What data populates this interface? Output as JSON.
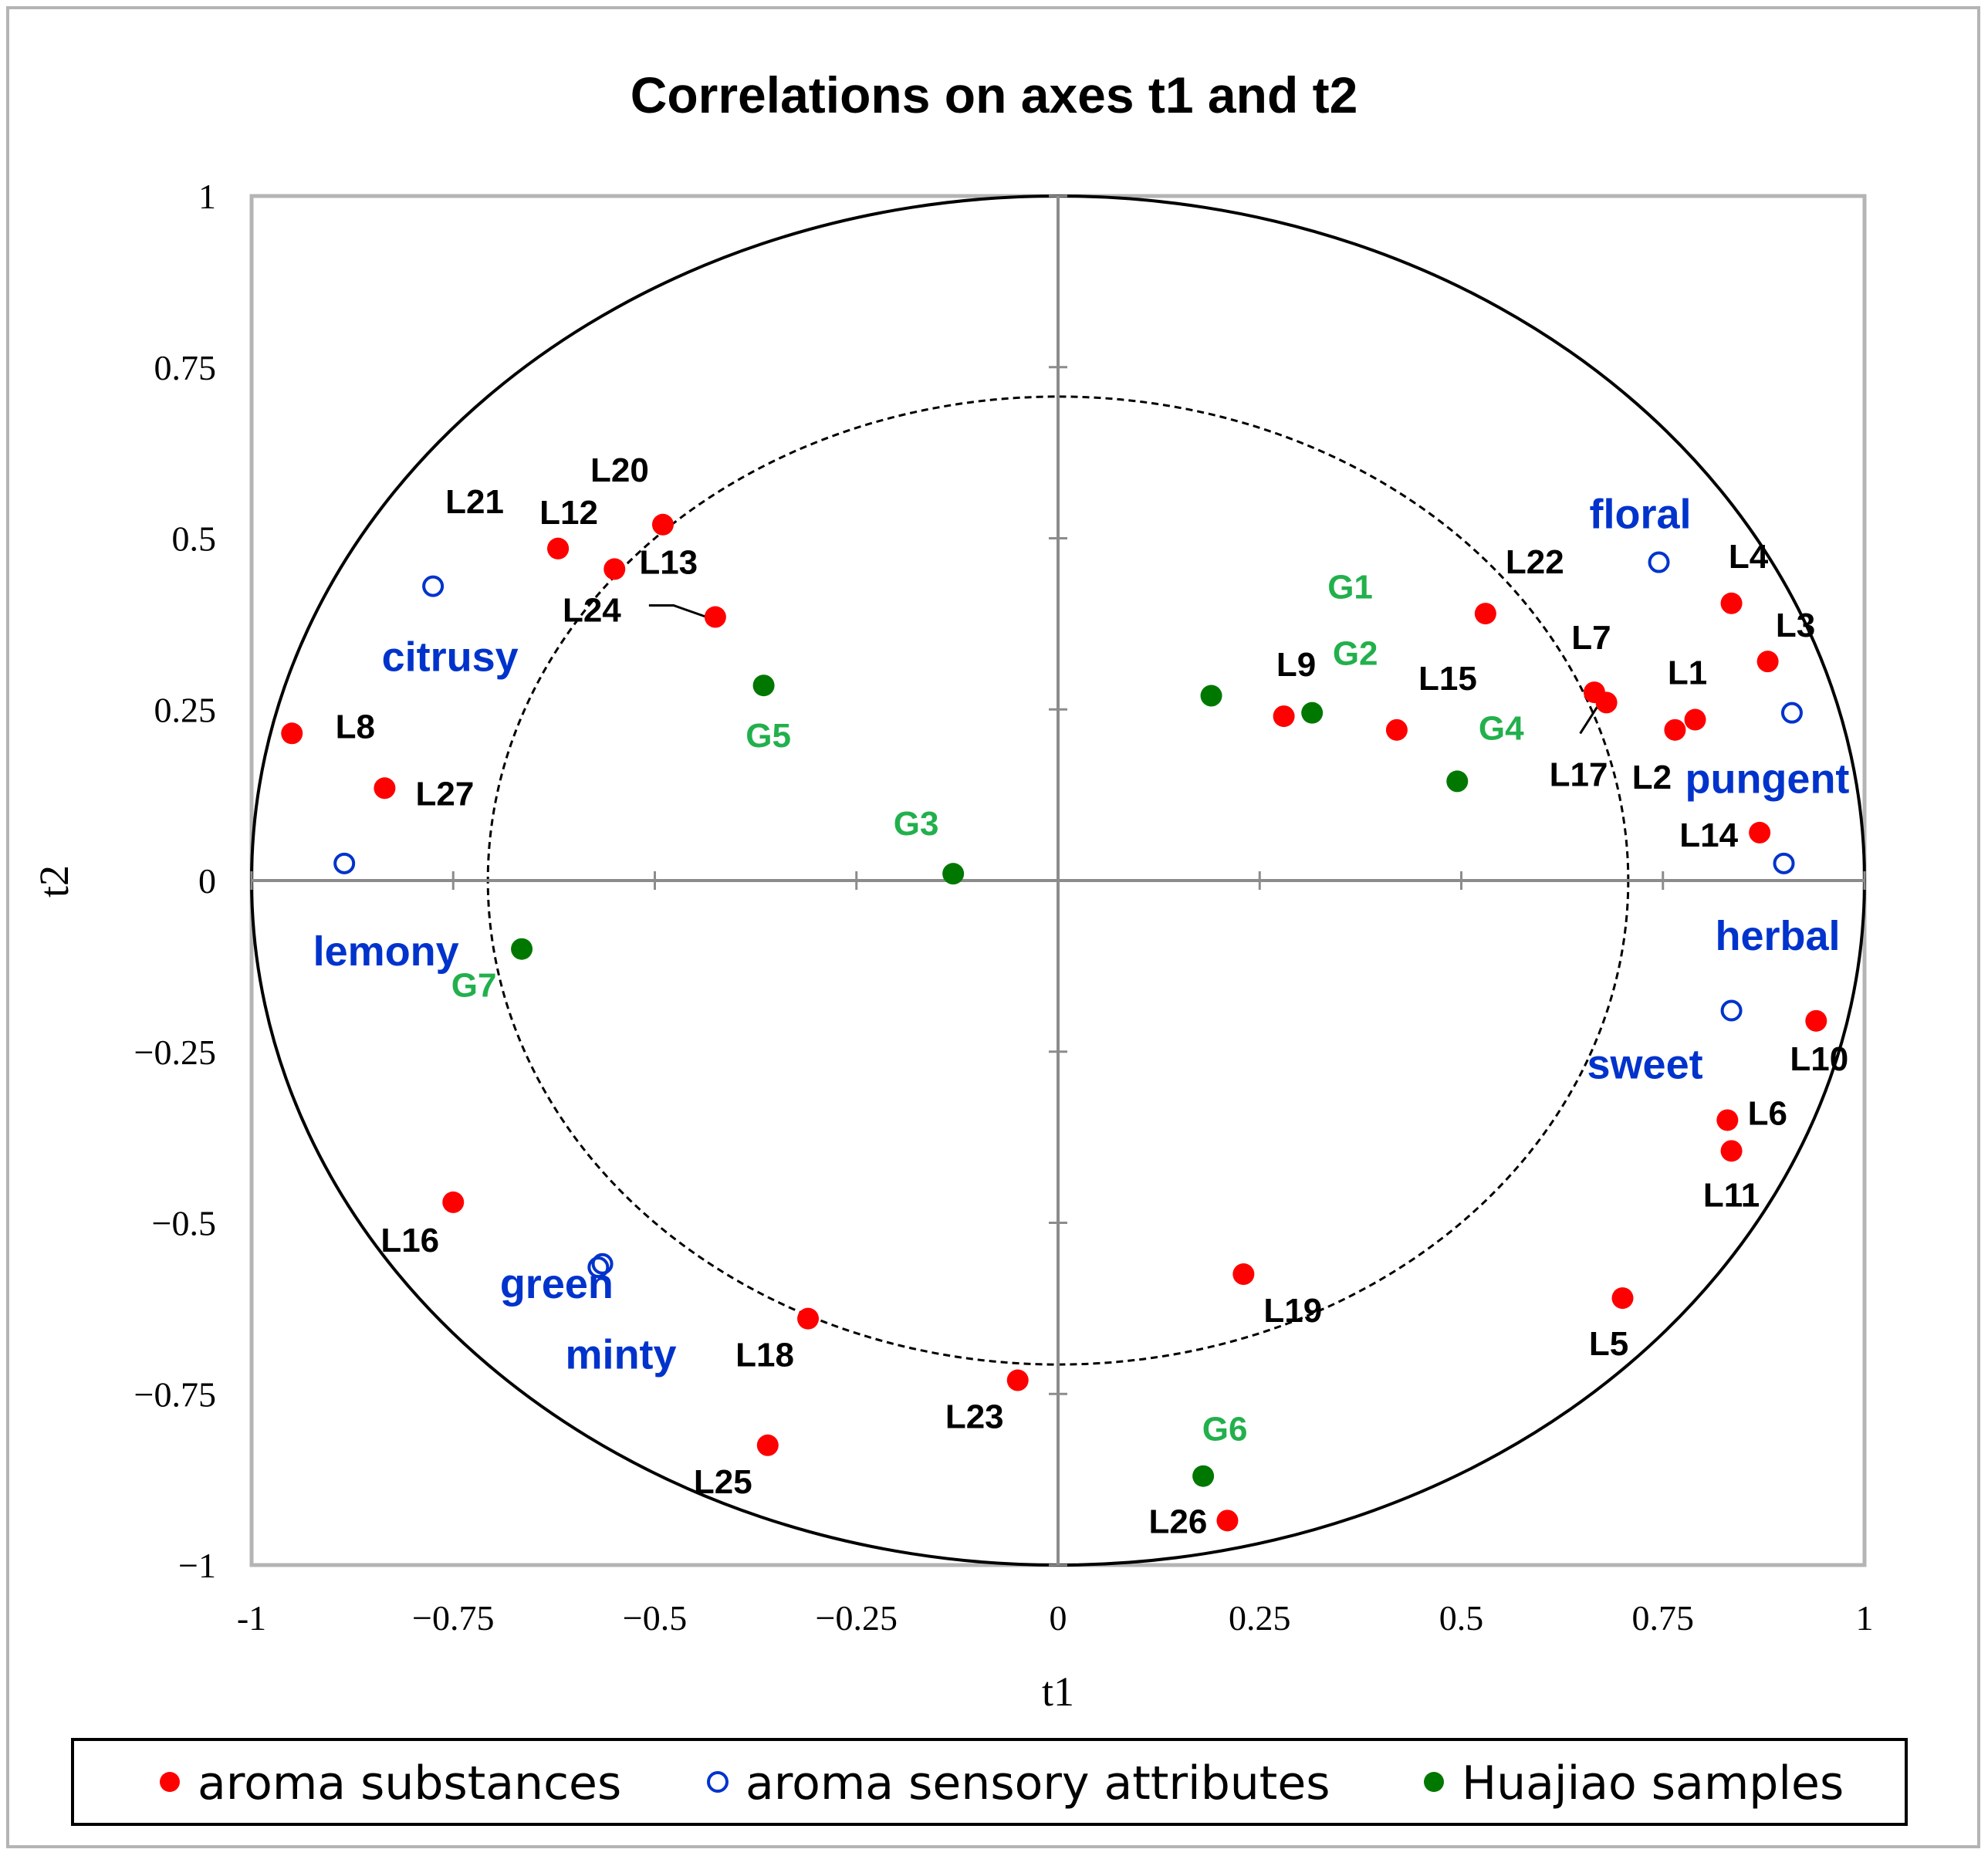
{
  "chart_data": {
    "type": "scatter",
    "title": "Correlations on axes t1 and t2",
    "xlabel": "t1",
    "ylabel": "t2",
    "xlim": [
      -1,
      1
    ],
    "ylim": [
      -1,
      1
    ],
    "x_ticks": [
      -1,
      -0.75,
      -0.5,
      -0.25,
      0,
      0.25,
      0.5,
      0.75,
      1
    ],
    "y_ticks": [
      -1,
      -0.75,
      -0.5,
      -0.25,
      0,
      0.25,
      0.5,
      0.75,
      1
    ],
    "x_tick_labels": [
      "-1",
      "−0.75",
      "−0.5",
      "−0.25",
      "0",
      "0.25",
      "0.5",
      "0.75",
      "1"
    ],
    "y_tick_labels": [
      "−1",
      "−0.75",
      "−0.5",
      "−0.25",
      "0",
      "0.25",
      "0.5",
      "0.75",
      "1"
    ],
    "circles": [
      {
        "radius": 1.0,
        "style": "solid"
      },
      {
        "radius": 0.707,
        "style": "dashed"
      }
    ],
    "colors": {
      "aroma": "#ff0000",
      "sensory": "#0033cc",
      "sample": "#007800",
      "sample_label": "#22b04c",
      "aroma_label": "#000000",
      "axis": "#8c8c8c"
    },
    "series": [
      {
        "name": "aroma substances",
        "marker": "filled-circle",
        "points": [
          {
            "label": "L1",
            "x": 0.79,
            "y": 0.235
          },
          {
            "label": "L2",
            "x": 0.765,
            "y": 0.22
          },
          {
            "label": "L3",
            "x": 0.88,
            "y": 0.32
          },
          {
            "label": "L4",
            "x": 0.835,
            "y": 0.405
          },
          {
            "label": "L5",
            "x": 0.7,
            "y": -0.61
          },
          {
            "label": "L6",
            "x": 0.83,
            "y": -0.35
          },
          {
            "label": "L7",
            "x": 0.665,
            "y": 0.275
          },
          {
            "label": "L8",
            "x": -0.95,
            "y": 0.215
          },
          {
            "label": "L9",
            "x": 0.28,
            "y": 0.24
          },
          {
            "label": "L10",
            "x": 0.94,
            "y": -0.205
          },
          {
            "label": "L11",
            "x": 0.835,
            "y": -0.395
          },
          {
            "label": "L12",
            "x": -0.62,
            "y": 0.485
          },
          {
            "label": "L13",
            "x": -0.55,
            "y": 0.455
          },
          {
            "label": "L14",
            "x": 0.87,
            "y": 0.07
          },
          {
            "label": "L15",
            "x": 0.42,
            "y": 0.22
          },
          {
            "label": "L16",
            "x": -0.75,
            "y": -0.47
          },
          {
            "label": "L17",
            "x": 0.68,
            "y": 0.26
          },
          {
            "label": "L18",
            "x": -0.31,
            "y": -0.64
          },
          {
            "label": "L19",
            "x": 0.23,
            "y": -0.575
          },
          {
            "label": "L20",
            "x": -0.49,
            "y": 0.52
          },
          {
            "label": "L21",
            "x": -0.62,
            "y": 0.485
          },
          {
            "label": "L22",
            "x": 0.53,
            "y": 0.39
          },
          {
            "label": "L23",
            "x": -0.05,
            "y": -0.73
          },
          {
            "label": "L24",
            "x": -0.425,
            "y": 0.385
          },
          {
            "label": "L25",
            "x": -0.36,
            "y": -0.825
          },
          {
            "label": "L26",
            "x": 0.21,
            "y": -0.935
          },
          {
            "label": "L27",
            "x": -0.835,
            "y": 0.135
          }
        ]
      },
      {
        "name": "aroma sensory attributes",
        "marker": "open-circle",
        "points": [
          {
            "label": "floral",
            "x": 0.745,
            "y": 0.465
          },
          {
            "label": "citrusy",
            "x": -0.775,
            "y": 0.43
          },
          {
            "label": "pungent",
            "x": 0.91,
            "y": 0.245
          },
          {
            "label": "herbal",
            "x": 0.9,
            "y": 0.025
          },
          {
            "label": "lemony",
            "x": -0.885,
            "y": 0.025
          },
          {
            "label": "sweet",
            "x": 0.835,
            "y": -0.19
          },
          {
            "label": "green",
            "x": -0.57,
            "y": -0.565
          },
          {
            "label": "minty",
            "x": -0.565,
            "y": -0.56
          }
        ]
      },
      {
        "name": "Huajiao samples",
        "marker": "filled-circle",
        "points": [
          {
            "label": "G1",
            "x": 0.19,
            "y": 0.27
          },
          {
            "label": "G2",
            "x": 0.315,
            "y": 0.245
          },
          {
            "label": "G3",
            "x": -0.13,
            "y": 0.01
          },
          {
            "label": "G4",
            "x": 0.495,
            "y": 0.145
          },
          {
            "label": "G5",
            "x": -0.365,
            "y": 0.285
          },
          {
            "label": "G6",
            "x": 0.18,
            "y": -0.87
          },
          {
            "label": "G7",
            "x": -0.665,
            "y": -0.1
          }
        ]
      }
    ],
    "legend": {
      "placement": "bottom",
      "entries": [
        "aroma substances",
        "aroma sensory attributes",
        "Huajiao samples"
      ]
    }
  }
}
